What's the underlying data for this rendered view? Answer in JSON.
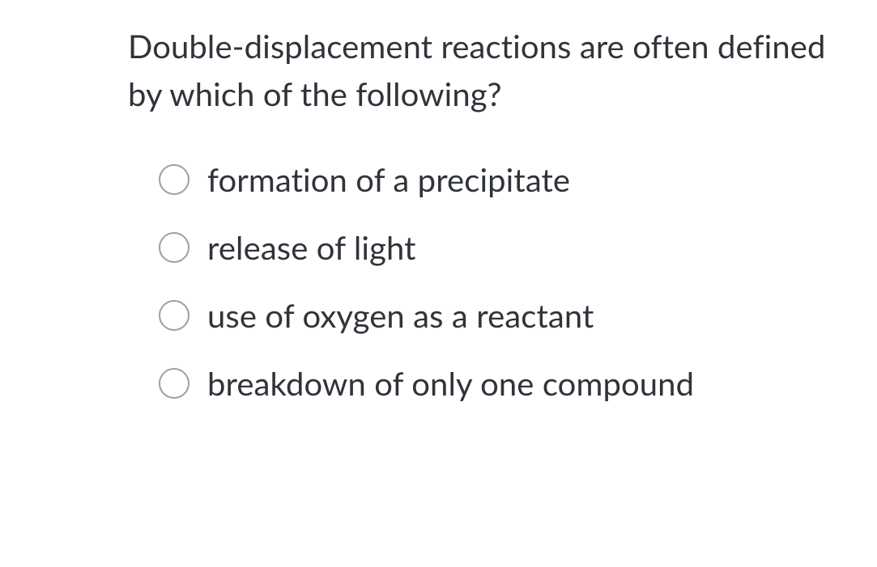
{
  "question": {
    "text": "Double-displacement reactions are often defined by which of the following?",
    "text_color": "#30343a",
    "font_size_pt": 30,
    "options": [
      {
        "label": "formation of a precipitate",
        "selected": false
      },
      {
        "label": "release of light",
        "selected": false
      },
      {
        "label": "use of oxygen as a reactant",
        "selected": false
      },
      {
        "label": "breakdown of only one compound",
        "selected": false
      }
    ],
    "radio_border_color": "#9aa0a6",
    "background_color": "#ffffff"
  }
}
